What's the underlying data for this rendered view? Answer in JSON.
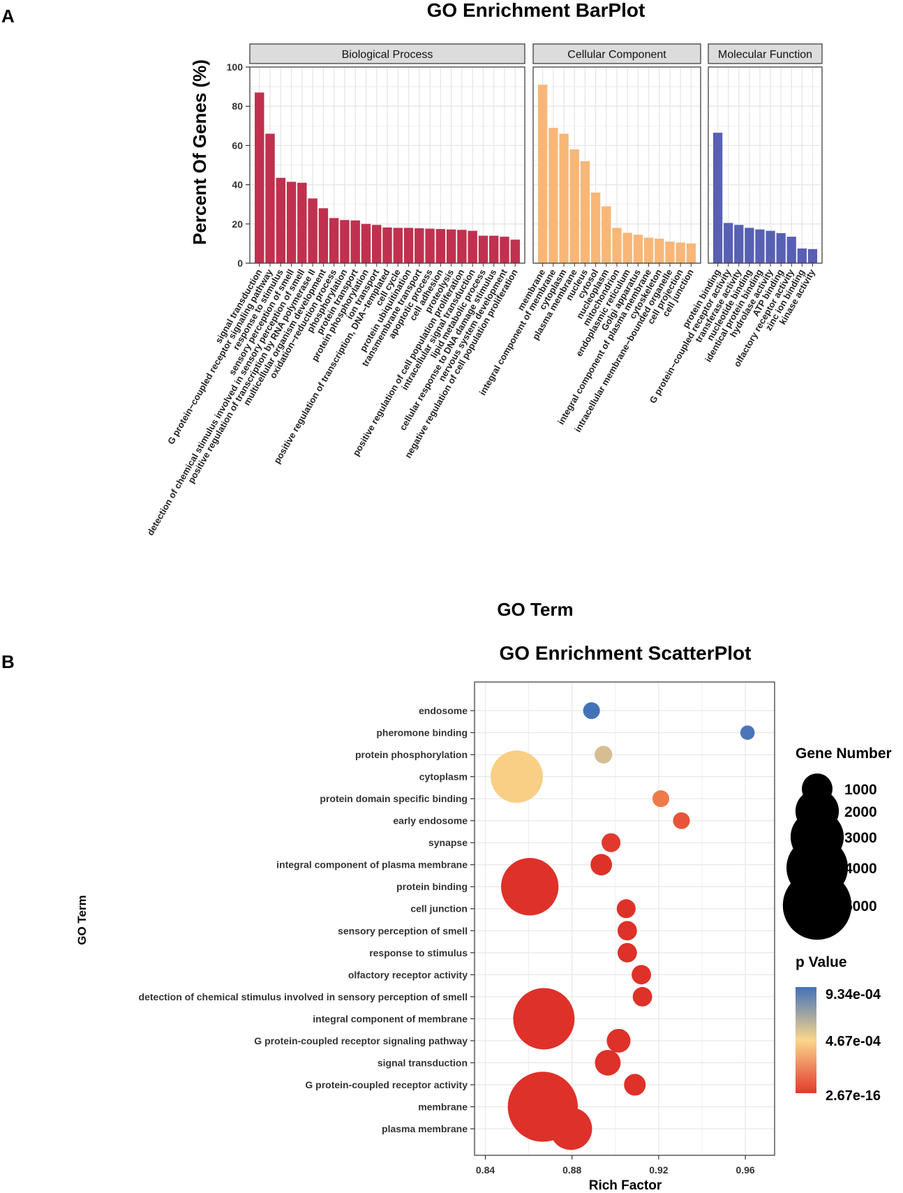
{
  "panel_labels": {
    "a": "A",
    "b": "B"
  },
  "chart_data": [
    {
      "type": "bar",
      "title": "GO Enrichment BarPlot",
      "xlabel": "GO Term",
      "ylabel": "Percent Of Genes (%)",
      "ylim": [
        0,
        100
      ],
      "yticks": [
        0,
        20,
        40,
        60,
        80,
        100
      ],
      "grid": true,
      "facets": [
        {
          "name": "Biological Process",
          "color": "#C1304F",
          "categories": [
            "signal transduction",
            "G protein−coupled receptor signaling pathway",
            "response to stimulus",
            "sensory perception of smell",
            "detection of chemical stimulus involved in sensory perception of smell",
            "positive regulation of transcription by RNA polymerase II",
            "multicellular organism development",
            "oxidation−reduction process",
            "phosphorylation",
            "protein transport",
            "protein phosphorylation",
            "ion transport",
            "positive regulation of transcription, DNA−templated",
            "cell cycle",
            "protein ubiquitination",
            "transmembrane transport",
            "apoptotic process",
            "cell adhesion",
            "proteolysis",
            "positive regulation of cell population proliferation",
            "intracellular signal transduction",
            "lipid metabolic process",
            "cellular response to DNA damage stimulus",
            "nervous system development",
            "negative regulation of cell population proliferation"
          ],
          "values": [
            87,
            66,
            43.5,
            41.5,
            41,
            33,
            28,
            23,
            22,
            21.8,
            20,
            19.5,
            18.2,
            18,
            18,
            17.8,
            17.6,
            17.4,
            17.2,
            17,
            16.5,
            14,
            14,
            13.5,
            12
          ]
        },
        {
          "name": "Cellular Component",
          "color": "#F8B777",
          "categories": [
            "membrane",
            "integral component of membrane",
            "cytoplasm",
            "plasma membrane",
            "nucleus",
            "cytosol",
            "nucleoplasm",
            "mitochondrion",
            "endoplasmic reticulum",
            "Golgi apparatus",
            "integral component of plasma membrane",
            "cytoskeleton",
            "intracellular membrane−bounded organelle",
            "cell projection",
            "cell junction"
          ],
          "values": [
            91,
            69,
            66,
            58,
            52,
            36,
            29,
            18,
            15.5,
            14.5,
            13,
            12.5,
            11,
            10.5,
            10
          ]
        },
        {
          "name": "Molecular Function",
          "color": "#5860B2",
          "categories": [
            "protein binding",
            "G protein−coupled receptor activity",
            "transferase activity",
            "nucleotide binding",
            "identical protein binding",
            "hydrolase activity",
            "ATP binding",
            "olfactory receptor activity",
            "zinc ion binding",
            "kinase activity"
          ],
          "values": [
            66.5,
            20.5,
            19.5,
            18,
            17.2,
            16.5,
            15.3,
            13.5,
            7.5,
            7.2
          ]
        }
      ]
    },
    {
      "type": "scatter",
      "title": "GO Enrichment ScatterPlot",
      "xlabel": "Rich Factor",
      "ylabel": "GO Term",
      "xlim": [
        0.835,
        0.9735
      ],
      "xticks": [
        "0.84",
        "0.88",
        "0.92",
        "0.96"
      ],
      "grid": true,
      "points": [
        {
          "term": "endosome",
          "x": 0.889,
          "genes": 300,
          "pvalue": 0.00092,
          "color": "#4472B9"
        },
        {
          "term": "pheromone binding",
          "x": 0.961,
          "genes": 220,
          "pvalue": 0.00093,
          "color": "#4C74B8"
        },
        {
          "term": "protein phosphorylation",
          "x": 0.8945,
          "genes": 330,
          "pvalue": 0.0006,
          "color": "#D6BE92"
        },
        {
          "term": "cytoplasm",
          "x": 0.8545,
          "genes": 2900,
          "pvalue": 0.00047,
          "color": "#F9CF86"
        },
        {
          "term": "protein domain specific binding",
          "x": 0.921,
          "genes": 300,
          "pvalue": 0.00025,
          "color": "#EE7A4A"
        },
        {
          "term": "early endosome",
          "x": 0.9305,
          "genes": 300,
          "pvalue": 0.00012,
          "color": "#E8533A"
        },
        {
          "term": "synapse",
          "x": 0.898,
          "genes": 380,
          "pvalue": 1e-07,
          "color": "#E03A2F"
        },
        {
          "term": "integral component of plasma membrane",
          "x": 0.8935,
          "genes": 490,
          "pvalue": 2.67e-16,
          "color": "#DE3129"
        },
        {
          "term": "protein binding",
          "x": 0.8605,
          "genes": 3500,
          "pvalue": 2.67e-16,
          "color": "#DE3129"
        },
        {
          "term": "cell junction",
          "x": 0.905,
          "genes": 380,
          "pvalue": 2.67e-16,
          "color": "#DE3129"
        },
        {
          "term": "sensory perception of smell",
          "x": 0.9055,
          "genes": 400,
          "pvalue": 2.67e-16,
          "color": "#DE3129"
        },
        {
          "term": "response to stimulus",
          "x": 0.9055,
          "genes": 400,
          "pvalue": 2.67e-16,
          "color": "#DE3129"
        },
        {
          "term": "olfactory receptor activity",
          "x": 0.912,
          "genes": 400,
          "pvalue": 2.67e-16,
          "color": "#DE3129"
        },
        {
          "term": "detection of chemical stimulus involved in sensory perception of smell",
          "x": 0.9125,
          "genes": 400,
          "pvalue": 2.67e-16,
          "color": "#DE3129"
        },
        {
          "term": "integral component of membrane",
          "x": 0.867,
          "genes": 4000,
          "pvalue": 2.67e-16,
          "color": "#DE3129"
        },
        {
          "term": "G protein-coupled receptor signaling pathway",
          "x": 0.9015,
          "genes": 600,
          "pvalue": 2.67e-16,
          "color": "#DE3129"
        },
        {
          "term": "signal transduction",
          "x": 0.8965,
          "genes": 700,
          "pvalue": 2.67e-16,
          "color": "#DE3129"
        },
        {
          "term": "G protein-coupled receptor activity",
          "x": 0.909,
          "genes": 500,
          "pvalue": 2.67e-16,
          "color": "#DE3129"
        },
        {
          "term": "membrane",
          "x": 0.8665,
          "genes": 5200,
          "pvalue": 2.67e-16,
          "color": "#DE3129"
        },
        {
          "term": "plasma membrane",
          "x": 0.8795,
          "genes": 1900,
          "pvalue": 2.67e-16,
          "color": "#DE3129"
        }
      ],
      "size_legend": {
        "title": "Gene Number",
        "values": [
          1000,
          2000,
          3000,
          4000,
          5000
        ]
      },
      "color_legend": {
        "title": "p Value",
        "labels": [
          "9.34e-04",
          "4.67e-04",
          "2.67e-16"
        ],
        "colors": [
          "#4472B9",
          "#F9D68C",
          "#E23A2F"
        ]
      }
    }
  ]
}
